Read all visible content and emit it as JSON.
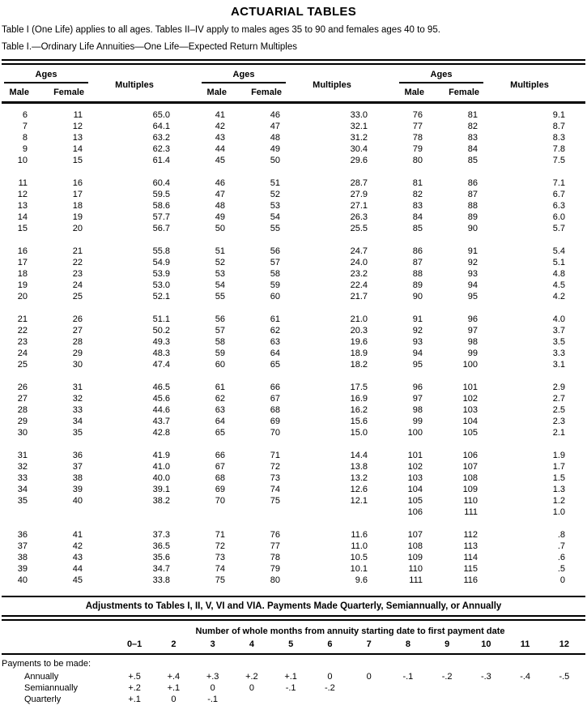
{
  "page": {
    "title": "ACTUARIAL TABLES",
    "intro": "Table I (One Life) applies to all ages. Tables II–IV apply to males ages 35 to 90 and females ages 40 to 95.",
    "caption": "Table I.—Ordinary Life Annuities—One Life—Expected Return Multiples"
  },
  "main_table": {
    "header": {
      "ages": "Ages",
      "male": "Male",
      "female": "Female",
      "multiples": "Multiples"
    },
    "rows": [
      [
        "6",
        "11",
        "65.0",
        "41",
        "46",
        "33.0",
        "76",
        "81",
        "9.1"
      ],
      [
        "7",
        "12",
        "64.1",
        "42",
        "47",
        "32.1",
        "77",
        "82",
        "8.7"
      ],
      [
        "8",
        "13",
        "63.2",
        "43",
        "48",
        "31.2",
        "78",
        "83",
        "8.3"
      ],
      [
        "9",
        "14",
        "62.3",
        "44",
        "49",
        "30.4",
        "79",
        "84",
        "7.8"
      ],
      [
        "10",
        "15",
        "61.4",
        "45",
        "50",
        "29.6",
        "80",
        "85",
        "7.5"
      ],
      null,
      [
        "11",
        "16",
        "60.4",
        "46",
        "51",
        "28.7",
        "81",
        "86",
        "7.1"
      ],
      [
        "12",
        "17",
        "59.5",
        "47",
        "52",
        "27.9",
        "82",
        "87",
        "6.7"
      ],
      [
        "13",
        "18",
        "58.6",
        "48",
        "53",
        "27.1",
        "83",
        "88",
        "6.3"
      ],
      [
        "14",
        "19",
        "57.7",
        "49",
        "54",
        "26.3",
        "84",
        "89",
        "6.0"
      ],
      [
        "15",
        "20",
        "56.7",
        "50",
        "55",
        "25.5",
        "85",
        "90",
        "5.7"
      ],
      null,
      [
        "16",
        "21",
        "55.8",
        "51",
        "56",
        "24.7",
        "86",
        "91",
        "5.4"
      ],
      [
        "17",
        "22",
        "54.9",
        "52",
        "57",
        "24.0",
        "87",
        "92",
        "5.1"
      ],
      [
        "18",
        "23",
        "53.9",
        "53",
        "58",
        "23.2",
        "88",
        "93",
        "4.8"
      ],
      [
        "19",
        "24",
        "53.0",
        "54",
        "59",
        "22.4",
        "89",
        "94",
        "4.5"
      ],
      [
        "20",
        "25",
        "52.1",
        "55",
        "60",
        "21.7",
        "90",
        "95",
        "4.2"
      ],
      null,
      [
        "21",
        "26",
        "51.1",
        "56",
        "61",
        "21.0",
        "91",
        "96",
        "4.0"
      ],
      [
        "22",
        "27",
        "50.2",
        "57",
        "62",
        "20.3",
        "92",
        "97",
        "3.7"
      ],
      [
        "23",
        "28",
        "49.3",
        "58",
        "63",
        "19.6",
        "93",
        "98",
        "3.5"
      ],
      [
        "24",
        "29",
        "48.3",
        "59",
        "64",
        "18.9",
        "94",
        "99",
        "3.3"
      ],
      [
        "25",
        "30",
        "47.4",
        "60",
        "65",
        "18.2",
        "95",
        "100",
        "3.1"
      ],
      null,
      [
        "26",
        "31",
        "46.5",
        "61",
        "66",
        "17.5",
        "96",
        "101",
        "2.9"
      ],
      [
        "27",
        "32",
        "45.6",
        "62",
        "67",
        "16.9",
        "97",
        "102",
        "2.7"
      ],
      [
        "28",
        "33",
        "44.6",
        "63",
        "68",
        "16.2",
        "98",
        "103",
        "2.5"
      ],
      [
        "29",
        "34",
        "43.7",
        "64",
        "69",
        "15.6",
        "99",
        "104",
        "2.3"
      ],
      [
        "30",
        "35",
        "42.8",
        "65",
        "70",
        "15.0",
        "100",
        "105",
        "2.1"
      ],
      null,
      [
        "31",
        "36",
        "41.9",
        "66",
        "71",
        "14.4",
        "101",
        "106",
        "1.9"
      ],
      [
        "32",
        "37",
        "41.0",
        "67",
        "72",
        "13.8",
        "102",
        "107",
        "1.7"
      ],
      [
        "33",
        "38",
        "40.0",
        "68",
        "73",
        "13.2",
        "103",
        "108",
        "1.5"
      ],
      [
        "34",
        "39",
        "39.1",
        "69",
        "74",
        "12.6",
        "104",
        "109",
        "1.3"
      ],
      [
        "35",
        "40",
        "38.2",
        "70",
        "75",
        "12.1",
        "105",
        "110",
        "1.2"
      ],
      [
        "",
        "",
        "",
        "",
        "",
        "",
        "106",
        "111",
        "1.0"
      ],
      null,
      [
        "36",
        "41",
        "37.3",
        "71",
        "76",
        "11.6",
        "107",
        "112",
        ".8"
      ],
      [
        "37",
        "42",
        "36.5",
        "72",
        "77",
        "11.0",
        "108",
        "113",
        ".7"
      ],
      [
        "38",
        "43",
        "35.6",
        "73",
        "78",
        "10.5",
        "109",
        "114",
        ".6"
      ],
      [
        "39",
        "44",
        "34.7",
        "74",
        "79",
        "10.1",
        "110",
        "115",
        ".5"
      ],
      [
        "40",
        "45",
        "33.8",
        "75",
        "80",
        "9.6",
        "111",
        "116",
        "0"
      ]
    ]
  },
  "adjustments": {
    "title": "Adjustments to Tables I, II, V, VI and VIA. Payments Made Quarterly, Semiannually, or Annually",
    "months_header": "Number of whole months from annuity starting date to first payment date",
    "columns": [
      "0–1",
      "2",
      "3",
      "4",
      "5",
      "6",
      "7",
      "8",
      "9",
      "10",
      "11",
      "12"
    ],
    "rows_label": "Payments to be made:",
    "rows": [
      {
        "label": "Annually",
        "values": [
          "+.5",
          "+.4",
          "+.3",
          "+.2",
          "+.1",
          "0",
          "0",
          "-.1",
          "-.2",
          "-.3",
          "-.4",
          "-.5"
        ]
      },
      {
        "label": "Semiannually",
        "values": [
          "+.2",
          "+.1",
          "0",
          "0",
          "-.1",
          "-.2",
          "",
          "",
          "",
          "",
          "",
          ""
        ]
      },
      {
        "label": "Quarterly",
        "values": [
          "+.1",
          "0",
          "-.1",
          "",
          "",
          "",
          "",
          "",
          "",
          "",
          "",
          ""
        ]
      }
    ]
  }
}
